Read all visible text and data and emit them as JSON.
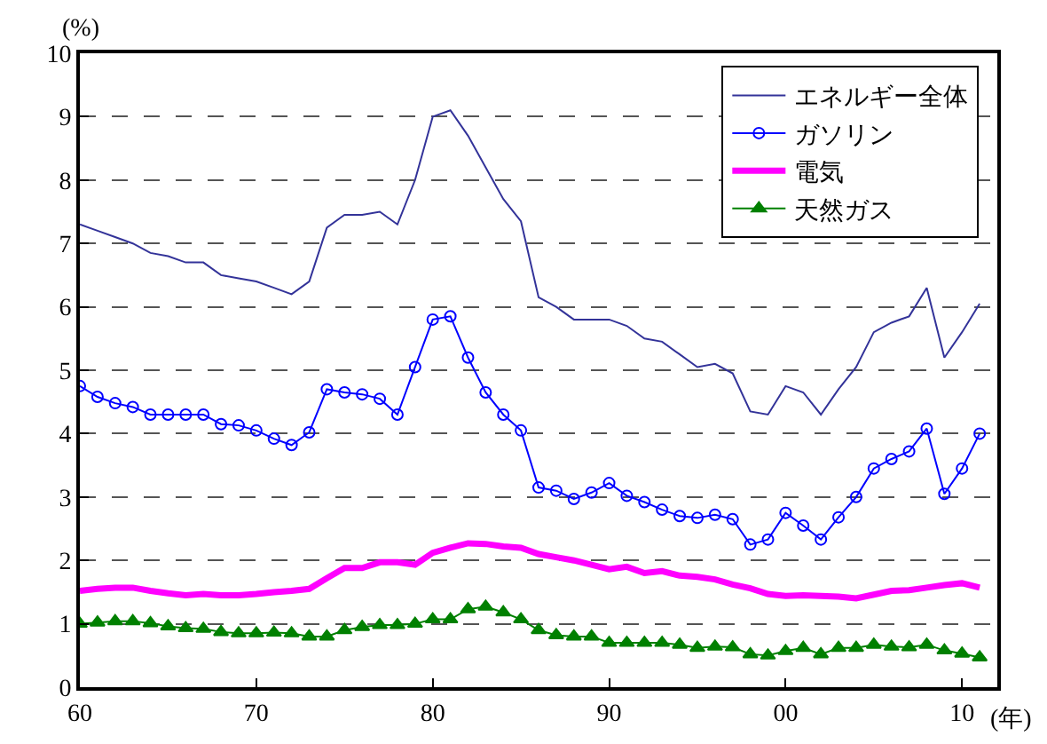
{
  "chart_data": {
    "type": "line",
    "ylabel": "(%)",
    "xlabel": "(年)",
    "x": [
      1960,
      1961,
      1962,
      1963,
      1964,
      1965,
      1966,
      1967,
      1968,
      1969,
      1970,
      1971,
      1972,
      1973,
      1974,
      1975,
      1976,
      1977,
      1978,
      1979,
      1980,
      1981,
      1982,
      1983,
      1984,
      1985,
      1986,
      1987,
      1988,
      1989,
      1990,
      1991,
      1992,
      1993,
      1994,
      1995,
      1996,
      1997,
      1998,
      1999,
      2000,
      2001,
      2002,
      2003,
      2004,
      2005,
      2006,
      2007,
      2008,
      2009,
      2010,
      2011
    ],
    "series": [
      {
        "name": "エネルギー全体",
        "color": "#333399",
        "marker": "none",
        "values": [
          7.3,
          7.2,
          7.1,
          7.0,
          6.85,
          6.8,
          6.7,
          6.7,
          6.5,
          6.45,
          6.4,
          6.3,
          6.2,
          6.4,
          7.25,
          7.45,
          7.45,
          7.5,
          7.3,
          8.0,
          9.0,
          9.1,
          8.7,
          8.2,
          7.7,
          7.35,
          6.15,
          6.0,
          5.8,
          5.8,
          5.8,
          5.7,
          5.5,
          5.45,
          5.25,
          5.05,
          5.1,
          4.95,
          4.35,
          4.3,
          4.75,
          4.65,
          4.3,
          4.7,
          5.05,
          5.6,
          5.75,
          5.85,
          6.3,
          5.2,
          5.6,
          6.05
        ]
      },
      {
        "name": "ガソリン",
        "color": "#0000ff",
        "marker": "circle",
        "values": [
          4.75,
          4.58,
          4.48,
          4.42,
          4.3,
          4.3,
          4.3,
          4.3,
          4.15,
          4.13,
          4.05,
          3.92,
          3.82,
          4.02,
          4.7,
          4.65,
          4.62,
          4.55,
          4.3,
          5.05,
          5.8,
          5.85,
          5.2,
          4.65,
          4.3,
          4.05,
          3.15,
          3.1,
          2.97,
          3.07,
          3.22,
          3.02,
          2.92,
          2.8,
          2.7,
          2.67,
          2.72,
          2.65,
          2.25,
          2.33,
          2.75,
          2.55,
          2.33,
          2.68,
          3.0,
          3.45,
          3.6,
          3.72,
          4.08,
          3.05,
          3.45,
          4.0
        ]
      },
      {
        "name": "電気",
        "color": "#ff00ff",
        "marker": "none",
        "values": [
          1.52,
          1.55,
          1.57,
          1.57,
          1.52,
          1.48,
          1.45,
          1.47,
          1.45,
          1.45,
          1.47,
          1.5,
          1.52,
          1.55,
          1.72,
          1.88,
          1.88,
          1.97,
          1.97,
          1.93,
          2.12,
          2.2,
          2.27,
          2.26,
          2.22,
          2.2,
          2.1,
          2.05,
          2.0,
          1.93,
          1.86,
          1.9,
          1.8,
          1.83,
          1.76,
          1.74,
          1.7,
          1.62,
          1.56,
          1.47,
          1.44,
          1.45,
          1.44,
          1.43,
          1.4,
          1.46,
          1.52,
          1.53,
          1.57,
          1.61,
          1.64,
          1.57
        ]
      },
      {
        "name": "天然ガス",
        "color": "#008000",
        "marker": "triangle",
        "values": [
          1.0,
          1.02,
          1.04,
          1.04,
          1.01,
          0.96,
          0.93,
          0.92,
          0.87,
          0.85,
          0.85,
          0.86,
          0.85,
          0.8,
          0.8,
          0.9,
          0.95,
          0.98,
          0.98,
          1.0,
          1.07,
          1.07,
          1.23,
          1.27,
          1.18,
          1.07,
          0.9,
          0.82,
          0.8,
          0.8,
          0.7,
          0.7,
          0.7,
          0.7,
          0.67,
          0.62,
          0.64,
          0.63,
          0.52,
          0.5,
          0.57,
          0.62,
          0.52,
          0.62,
          0.62,
          0.67,
          0.64,
          0.63,
          0.67,
          0.58,
          0.53,
          0.47
        ]
      }
    ],
    "xlim": [
      1960,
      2012
    ],
    "xticks": [
      {
        "value": 1960,
        "label": "60"
      },
      {
        "value": 1970,
        "label": "70"
      },
      {
        "value": 1980,
        "label": "80"
      },
      {
        "value": 1990,
        "label": "90"
      },
      {
        "value": 2000,
        "label": "00"
      },
      {
        "value": 2010,
        "label": "10"
      }
    ],
    "ylim": [
      0,
      10
    ],
    "yticks": [
      0,
      1,
      2,
      3,
      4,
      5,
      6,
      7,
      8,
      9,
      10
    ],
    "grid": "y",
    "legend": "top right",
    "line_style": "solid"
  }
}
